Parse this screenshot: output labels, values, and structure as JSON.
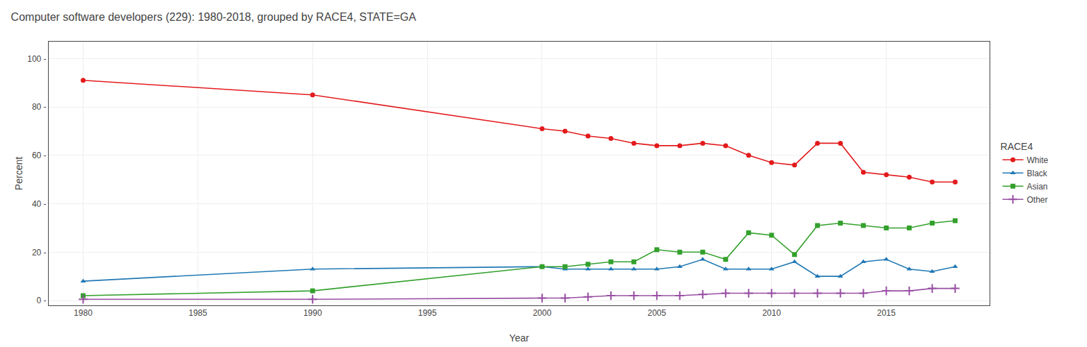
{
  "chart_data": {
    "type": "line",
    "title": "Computer software developers (229): 1980-2018, grouped by RACE4, STATE=GA",
    "xlabel": "Year",
    "ylabel": "Percent",
    "legend_title": "RACE4",
    "legend": "right",
    "grid": true,
    "x": [
      1980,
      1990,
      2000,
      2001,
      2002,
      2003,
      2004,
      2005,
      2006,
      2007,
      2008,
      2009,
      2010,
      2011,
      2012,
      2013,
      2014,
      2015,
      2016,
      2017,
      2018
    ],
    "series": [
      {
        "name": "White",
        "color": "#e31a1c",
        "marker": "circle",
        "values": [
          91,
          85,
          71,
          70,
          68,
          67,
          65,
          64,
          64,
          65,
          64,
          60,
          57,
          56,
          65,
          65,
          53,
          52,
          51,
          49,
          49
        ]
      },
      {
        "name": "Black",
        "color": "#1f78b4",
        "marker": "triangle-up",
        "values": [
          8,
          13,
          14,
          13,
          13,
          13,
          13,
          13,
          14,
          17,
          13,
          13,
          13,
          16,
          10,
          10,
          16,
          17,
          13,
          12,
          14
        ]
      },
      {
        "name": "Asian",
        "color": "#33a02c",
        "marker": "square",
        "values": [
          2,
          4,
          14,
          14,
          15,
          16,
          16,
          21,
          20,
          20,
          17,
          28,
          27,
          19,
          31,
          32,
          31,
          30,
          30,
          32,
          33
        ]
      },
      {
        "name": "Other",
        "color": "#984ea3",
        "marker": "plus",
        "values": [
          0.5,
          0.5,
          1,
          1,
          1.5,
          2,
          2,
          2,
          2,
          2.5,
          3,
          3,
          3,
          3,
          3,
          3,
          3,
          4,
          4,
          5,
          5
        ]
      }
    ],
    "xlim": [
      1978.5,
      2019.5
    ],
    "xticks": [
      1980,
      1985,
      1990,
      1995,
      2000,
      2005,
      2010,
      2015
    ],
    "ylim": [
      -2,
      107
    ],
    "yticks": [
      {
        "value": 0,
        "label": "0 -"
      },
      {
        "value": 20,
        "label": "20 -"
      },
      {
        "value": 40,
        "label": "40 -"
      },
      {
        "value": 60,
        "label": "60 -"
      },
      {
        "value": 80,
        "label": "80 -"
      },
      {
        "value": 100,
        "label": "100 -"
      }
    ]
  }
}
